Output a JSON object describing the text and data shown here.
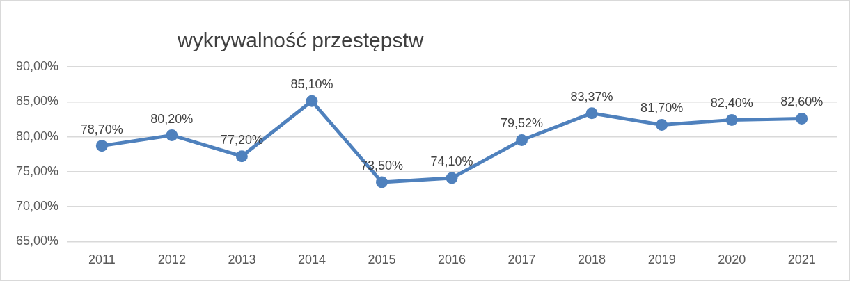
{
  "chart_data": {
    "type": "line",
    "title": "wykrywalność przestępstw",
    "categories": [
      "2011",
      "2012",
      "2013",
      "2014",
      "2015",
      "2016",
      "2017",
      "2018",
      "2019",
      "2020",
      "2021"
    ],
    "series": [
      {
        "color": "#4f81bd",
        "values": [
          78.7,
          80.2,
          77.2,
          85.1,
          73.5,
          74.1,
          79.52,
          83.37,
          81.7,
          82.4,
          82.6
        ],
        "value_labels": [
          "78,70%",
          "80,20%",
          "77,20%",
          "85,10%",
          "73,50%",
          "74,10%",
          "79,52%",
          "83,37%",
          "81,70%",
          "82,40%",
          "82,60%"
        ]
      }
    ],
    "ylim": [
      65,
      90
    ],
    "yticks": [
      {
        "value": 65,
        "label": "65,00%"
      },
      {
        "value": 70,
        "label": "70,00%"
      },
      {
        "value": 75,
        "label": "75,00%"
      },
      {
        "value": 80,
        "label": "80,00%"
      },
      {
        "value": 85,
        "label": "85,00%"
      },
      {
        "value": 90,
        "label": "90,00%"
      }
    ],
    "grid": "y",
    "legend": false,
    "marker": "circle",
    "line_style": "solid"
  }
}
